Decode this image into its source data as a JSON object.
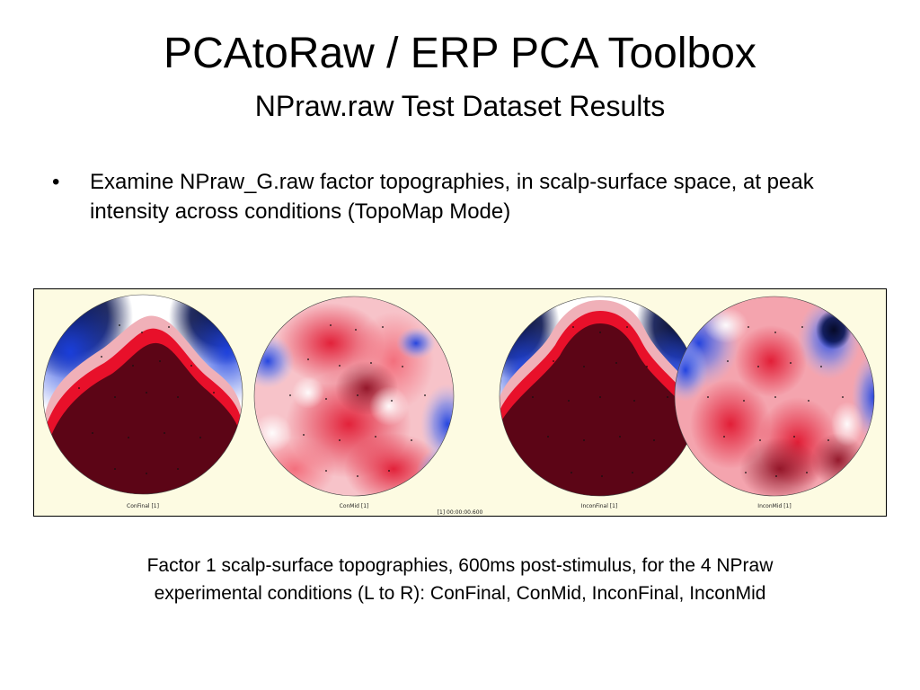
{
  "slide": {
    "title": "PCAtoRaw / ERP PCA Toolbox",
    "subtitle": "NPraw.raw Test Dataset Results",
    "bullets": [
      {
        "marker": "•",
        "text": "Examine NPraw_G.raw factor topographies, in scalp-surface space, at peak intensity across conditions (TopoMap Mode)"
      }
    ],
    "caption": {
      "line1": "Factor 1 scalp-surface topographies, 600ms post-stimulus, for the 4 NPraw",
      "line2": "experimental conditions (L to R): ConFinal, ConMid, InconFinal, InconMid"
    }
  },
  "figure": {
    "background": "#fdfbe2",
    "time_label": "[1] 00:00:00.600",
    "maps": [
      {
        "label": "ConFinal [1]"
      },
      {
        "label": "ConMid [1]"
      },
      {
        "label": "InconFinal [1]"
      },
      {
        "label": "InconMid [1]"
      }
    ],
    "colors": {
      "dark_red": "#5c0516",
      "red": "#e8102a",
      "white": "#ffffff",
      "blue": "#1a3fe0",
      "dark_navy": "#080c2e"
    }
  }
}
